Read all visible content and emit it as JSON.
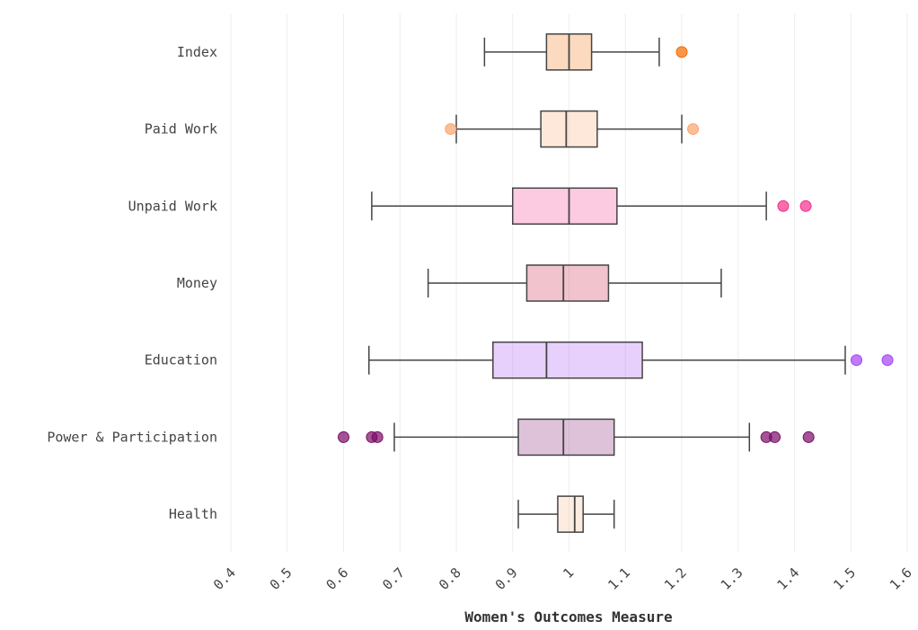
{
  "chart_data": {
    "type": "boxplot",
    "orientation": "horizontal",
    "x_label": "Women's Outcomes Measure",
    "xlim": [
      0.4,
      1.6
    ],
    "xticks": [
      0.4,
      0.5,
      0.6,
      0.7,
      0.8,
      0.9,
      1,
      1.1,
      1.2,
      1.3,
      1.4,
      1.5,
      1.6
    ],
    "grid": true,
    "series": [
      {
        "name": "Index",
        "color": "#f56a00",
        "whisker_low": 0.85,
        "q1": 0.96,
        "median": 1.0,
        "q3": 1.04,
        "whisker_high": 1.16,
        "outliers": [
          1.2
        ]
      },
      {
        "name": "Paid Work",
        "color": "#f9a36b",
        "whisker_low": 0.8,
        "q1": 0.95,
        "median": 0.995,
        "q3": 1.05,
        "whisker_high": 1.2,
        "outliers": [
          0.79,
          1.22
        ]
      },
      {
        "name": "Unpaid Work",
        "color": "#f52f8a",
        "whisker_low": 0.65,
        "q1": 0.9,
        "median": 1.0,
        "q3": 1.085,
        "whisker_high": 1.35,
        "outliers": [
          1.38,
          1.42
        ]
      },
      {
        "name": "Money",
        "color": "#c70f33",
        "whisker_low": 0.75,
        "q1": 0.925,
        "median": 0.99,
        "q3": 1.07,
        "whisker_high": 1.27,
        "outliers": []
      },
      {
        "name": "Education",
        "color": "#a442f5",
        "whisker_low": 0.645,
        "q1": 0.865,
        "median": 0.96,
        "q3": 1.13,
        "whisker_high": 1.49,
        "outliers": [
          1.51,
          1.565
        ]
      },
      {
        "name": "Power & Participation",
        "color": "#7a0b66",
        "whisker_low": 0.69,
        "q1": 0.91,
        "median": 0.99,
        "q3": 1.08,
        "whisker_high": 1.32,
        "outliers": [
          0.6,
          0.65,
          0.66,
          1.35,
          1.365,
          1.425
        ]
      },
      {
        "name": "Health",
        "color": "#f9b987",
        "whisker_low": 0.91,
        "q1": 0.98,
        "median": 1.01,
        "q3": 1.025,
        "whisker_high": 1.08,
        "outliers": []
      }
    ]
  }
}
